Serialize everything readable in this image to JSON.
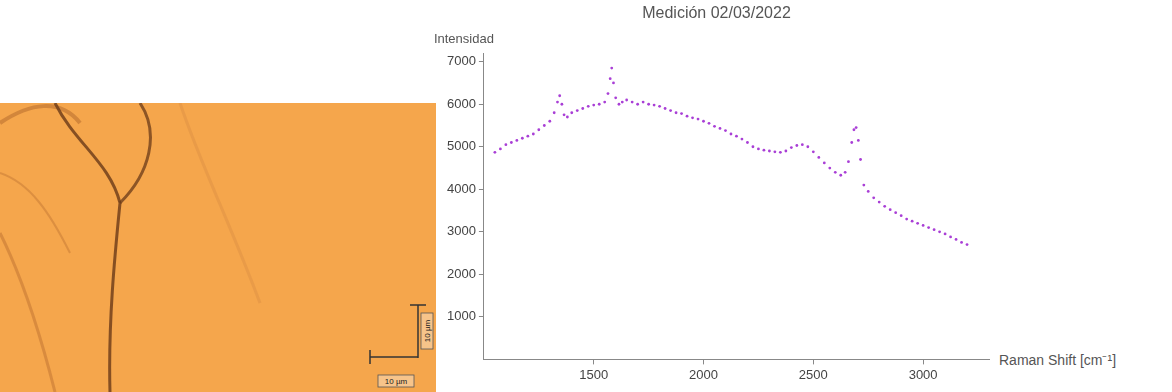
{
  "image": {
    "vertical_scale_label": "10 µm",
    "horizontal_scale_label": "10 µm"
  },
  "chart_data": {
    "type": "scatter",
    "title": "Medición 02/03/2022",
    "x_label": "Raman Shift [cm⁻¹]",
    "y_label": "Intensidad",
    "color": "#a93fd6",
    "marker": "dot",
    "grid": false,
    "xlim": [
      1000,
      3300
    ],
    "xticks": [
      1500,
      2000,
      2500,
      3000
    ],
    "ylim": [
      0,
      7200
    ],
    "yticks": [
      1000,
      2000,
      3000,
      4000,
      5000,
      6000,
      7000
    ],
    "x": [
      1050,
      1075,
      1100,
      1125,
      1150,
      1175,
      1200,
      1225,
      1250,
      1275,
      1300,
      1320,
      1335,
      1345,
      1355,
      1365,
      1380,
      1400,
      1425,
      1450,
      1475,
      1500,
      1525,
      1550,
      1565,
      1575,
      1582,
      1590,
      1600,
      1615,
      1630,
      1650,
      1675,
      1700,
      1725,
      1750,
      1775,
      1800,
      1825,
      1850,
      1875,
      1900,
      1925,
      1950,
      1975,
      2000,
      2025,
      2050,
      2075,
      2100,
      2125,
      2150,
      2175,
      2200,
      2225,
      2250,
      2275,
      2300,
      2325,
      2350,
      2375,
      2400,
      2425,
      2450,
      2475,
      2500,
      2525,
      2550,
      2575,
      2600,
      2625,
      2645,
      2660,
      2675,
      2685,
      2695,
      2705,
      2715,
      2730,
      2750,
      2775,
      2800,
      2825,
      2850,
      2875,
      2900,
      2925,
      2950,
      2975,
      3000,
      3025,
      3050,
      3075,
      3100,
      3125,
      3150,
      3175,
      3200
    ],
    "values": [
      4870,
      4950,
      5050,
      5100,
      5150,
      5200,
      5250,
      5300,
      5400,
      5500,
      5600,
      5800,
      6050,
      6200,
      6000,
      5750,
      5700,
      5800,
      5850,
      5900,
      5950,
      5980,
      6000,
      6050,
      6250,
      6600,
      6850,
      6500,
      6150,
      6000,
      6050,
      6100,
      6050,
      6000,
      6050,
      6000,
      5980,
      5950,
      5900,
      5850,
      5800,
      5780,
      5720,
      5680,
      5650,
      5600,
      5550,
      5480,
      5430,
      5380,
      5300,
      5250,
      5180,
      5100,
      5000,
      4950,
      4920,
      4900,
      4880,
      4870,
      4900,
      4980,
      5030,
      5050,
      5000,
      4880,
      4750,
      4620,
      4500,
      4400,
      4330,
      4400,
      4650,
      5100,
      5400,
      5450,
      5150,
      4700,
      4100,
      3950,
      3800,
      3700,
      3600,
      3520,
      3450,
      3380,
      3300,
      3250,
      3200,
      3150,
      3100,
      3050,
      3000,
      2950,
      2880,
      2820,
      2750,
      2700
    ]
  }
}
